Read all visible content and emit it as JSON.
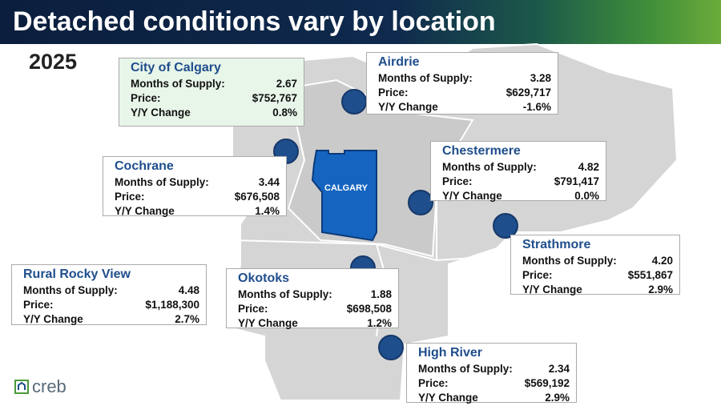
{
  "header": {
    "title": "Detached conditions vary by location"
  },
  "year": "2025",
  "map_label": "CALGARY",
  "logo": "creb",
  "locations": [
    {
      "name": "City of Calgary",
      "rows": [
        {
          "label": "Months of Supply:",
          "value": "2.67"
        },
        {
          "label": "Price:",
          "value": "$752,767"
        },
        {
          "label": "Y/Y Change",
          "value": "0.8%"
        }
      ]
    },
    {
      "name": "Airdrie",
      "rows": [
        {
          "label": "Months of Supply:",
          "value": "3.28"
        },
        {
          "label": "Price:",
          "value": "$629,717"
        },
        {
          "label": "Y/Y Change",
          "value": "-1.6%"
        }
      ]
    },
    {
      "name": "Cochrane",
      "rows": [
        {
          "label": "Months of Supply:",
          "value": "3.44"
        },
        {
          "label": "Price:",
          "value": "$676,508"
        },
        {
          "label": "Y/Y Change",
          "value": "1.4%"
        }
      ]
    },
    {
      "name": "Chestermere",
      "rows": [
        {
          "label": "Months of Supply:",
          "value": "4.82"
        },
        {
          "label": "Price:",
          "value": "$791,417"
        },
        {
          "label": "Y/Y Change",
          "value": "0.0%"
        }
      ]
    },
    {
      "name": "Rural Rocky View",
      "rows": [
        {
          "label": "Months of Supply:",
          "value": "4.48"
        },
        {
          "label": "Price:",
          "value": "$1,188,300"
        },
        {
          "label": "Y/Y Change",
          "value": "2.7%"
        }
      ]
    },
    {
      "name": "Okotoks",
      "rows": [
        {
          "label": "Months of Supply:",
          "value": "1.88"
        },
        {
          "label": "Price:",
          "value": "$698,508"
        },
        {
          "label": "Y/Y Change",
          "value": "1.2%"
        }
      ]
    },
    {
      "name": "Strathmore",
      "rows": [
        {
          "label": "Months of Supply:",
          "value": "4.20"
        },
        {
          "label": "Price:",
          "value": "$551,867"
        },
        {
          "label": "Y/Y Change",
          "value": "2.9%"
        }
      ]
    },
    {
      "name": "High River",
      "rows": [
        {
          "label": "Months of Supply:",
          "value": "2.34"
        },
        {
          "label": "Price:",
          "value": "$569,192"
        },
        {
          "label": "Y/Y Change",
          "value": "2.9%"
        }
      ]
    }
  ]
}
